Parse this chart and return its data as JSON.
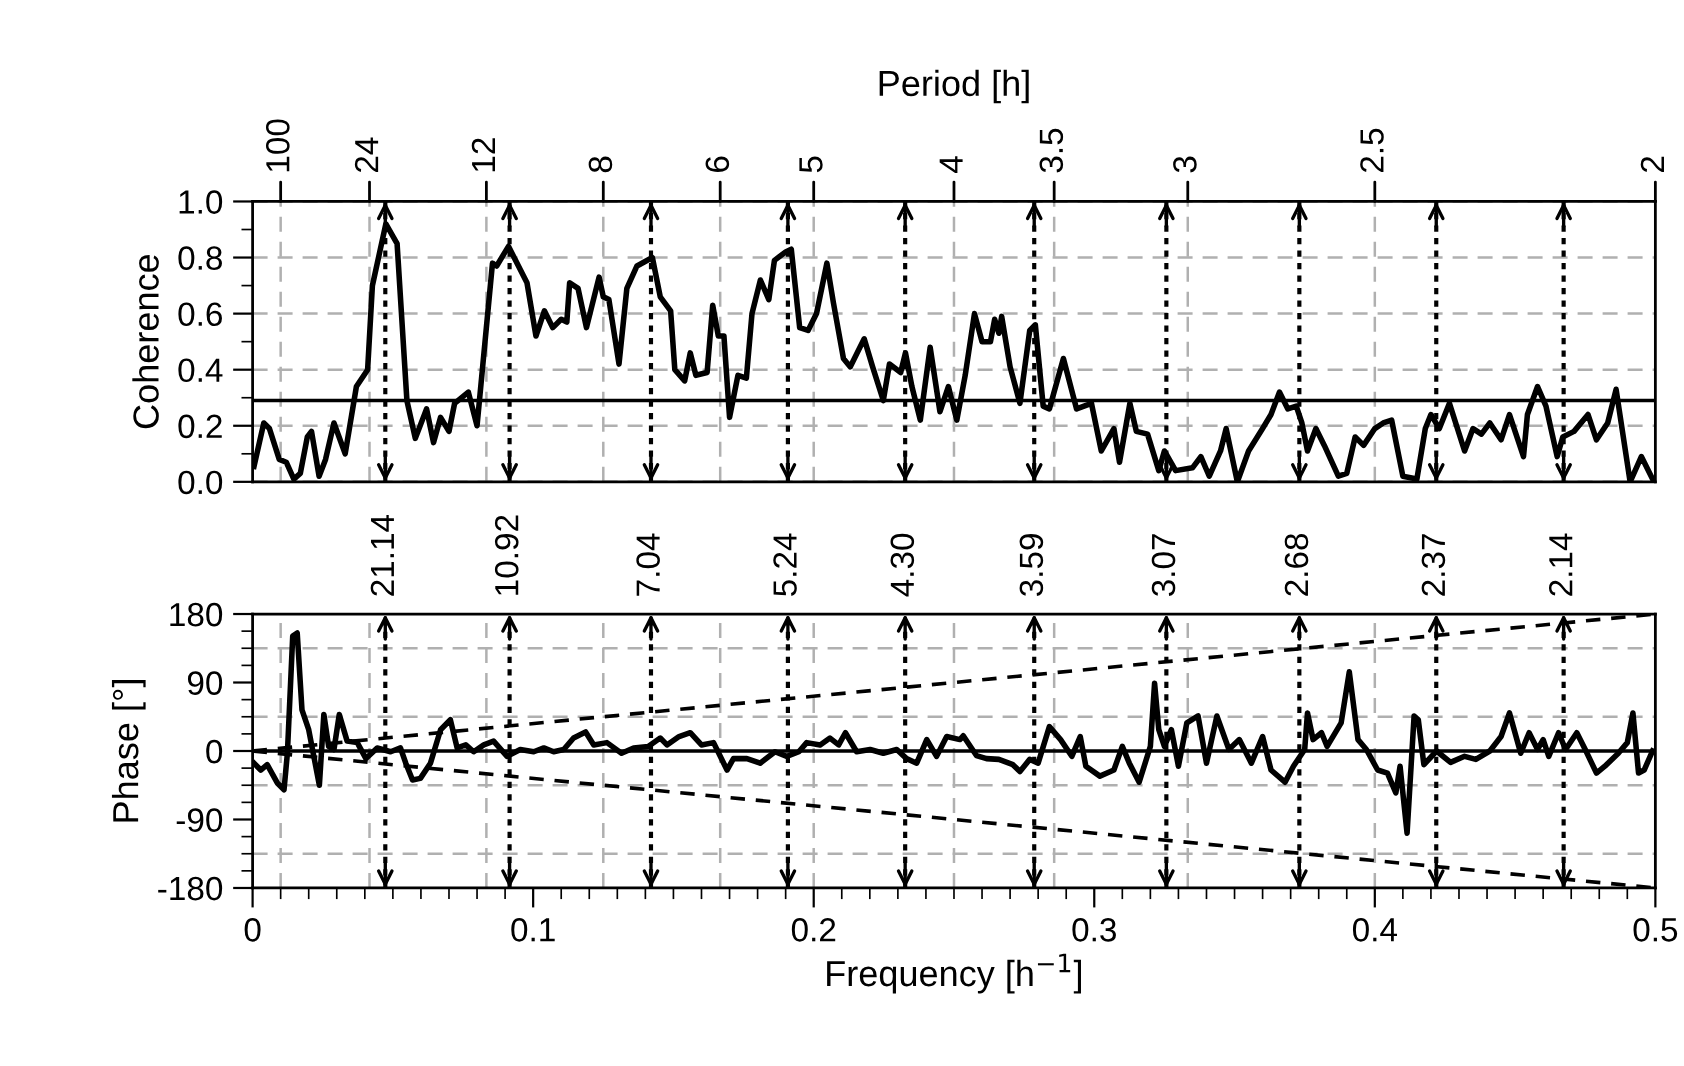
{
  "chart_data": [
    {
      "type": "line",
      "ylabel": "Coherence",
      "x2label": "Period [h]",
      "xlim": [
        0,
        0.5
      ],
      "ylim": [
        0,
        1.0
      ],
      "yticks": [
        {
          "value": 0.0,
          "label": "0.0"
        },
        {
          "value": 0.1,
          "label": null
        },
        0.2,
        {
          "value": 0.3,
          "label": null
        },
        0.4,
        {
          "value": 0.5,
          "label": null
        },
        0.6,
        {
          "value": 0.7,
          "label": null
        },
        0.8,
        {
          "value": 0.9,
          "label": null
        },
        {
          "value": 1.0,
          "label": "1.0"
        }
      ],
      "annotations": [
        {
          "text": "100",
          "x": 0.01,
          "y": 1.0
        },
        {
          "text": "24",
          "x": 0.04167,
          "y": 1.0
        },
        {
          "text": "12",
          "x": 0.08333,
          "y": 1.0
        },
        {
          "text": "8",
          "x": 0.125,
          "y": 1.0
        },
        {
          "text": "6",
          "x": 0.16667,
          "y": 1.0
        },
        {
          "text": "5",
          "x": 0.2,
          "y": 1.0
        },
        {
          "text": "4",
          "x": 0.25,
          "y": 1.0
        },
        {
          "text": "3.5",
          "x": 0.28571,
          "y": 1.0
        },
        {
          "text": "3",
          "x": 0.33333,
          "y": 1.0
        },
        {
          "text": "2.5",
          "x": 0.4,
          "y": 1.0
        },
        {
          "text": "2",
          "x": 0.5,
          "y": 1.0
        }
      ],
      "grid": "y",
      "tick_labels": "y",
      "ref_lines": [
        {
          "axis": "x",
          "value": 0.01,
          "color": "#b0b0b0",
          "line_style": "dashed"
        },
        {
          "axis": "x",
          "value": 0.04167,
          "color": "#b0b0b0",
          "line_style": "dashed"
        },
        {
          "axis": "x",
          "value": 0.08333,
          "color": "#b0b0b0",
          "line_style": "dashed"
        },
        {
          "axis": "x",
          "value": 0.125,
          "color": "#b0b0b0",
          "line_style": "dashed"
        },
        {
          "axis": "x",
          "value": 0.16667,
          "color": "#b0b0b0",
          "line_style": "dashed"
        },
        {
          "axis": "x",
          "value": 0.2,
          "color": "#b0b0b0",
          "line_style": "dashed"
        },
        {
          "axis": "x",
          "value": 0.25,
          "color": "#b0b0b0",
          "line_style": "dashed"
        },
        {
          "axis": "x",
          "value": 0.28571,
          "color": "#b0b0b0",
          "line_style": "dashed"
        },
        {
          "axis": "x",
          "value": 0.33333,
          "color": "#b0b0b0",
          "line_style": "dashed"
        },
        {
          "axis": "x",
          "value": 0.4,
          "color": "#b0b0b0",
          "line_style": "dashed"
        },
        {
          "axis": "x",
          "value": 0.5,
          "color": "#000000",
          "line_style": "solid"
        },
        {
          "axis": "y",
          "value": 0.29,
          "color": "#000000",
          "line_style": "solid"
        },
        {
          "axis": "x",
          "value": 0.0473,
          "line_style": "dotted"
        },
        {
          "axis": "x",
          "value": 0.0916,
          "line_style": "dotted"
        },
        {
          "axis": "x",
          "value": 0.142,
          "line_style": "dotted"
        },
        {
          "axis": "x",
          "value": 0.1908,
          "line_style": "dotted"
        },
        {
          "axis": "x",
          "value": 0.2326,
          "line_style": "dotted"
        },
        {
          "axis": "x",
          "value": 0.2786,
          "line_style": "dotted"
        },
        {
          "axis": "x",
          "value": 0.3257,
          "line_style": "dotted"
        },
        {
          "axis": "x",
          "value": 0.3731,
          "line_style": "dotted"
        },
        {
          "axis": "x",
          "value": 0.4219,
          "line_style": "dotted"
        },
        {
          "axis": "x",
          "value": 0.4673,
          "line_style": "dotted"
        }
      ],
      "series": [
        {
          "color": "#000000",
          "line_style": "solid",
          "x": [
            0.0005,
            0.004,
            0.006,
            0.0095,
            0.012,
            0.0147,
            0.017,
            0.0195,
            0.021,
            0.0237,
            0.026,
            0.029,
            0.033,
            0.037,
            0.041,
            0.0427,
            0.0475,
            0.0515,
            0.055,
            0.058,
            0.062,
            0.0645,
            0.067,
            0.07,
            0.072,
            0.0769,
            0.08,
            0.0855,
            0.087,
            0.0912,
            0.0978,
            0.101,
            0.104,
            0.107,
            0.11,
            0.112,
            0.113,
            0.116,
            0.119,
            0.1235,
            0.125,
            0.127,
            0.1306,
            0.1334,
            0.137,
            0.1425,
            0.1453,
            0.149,
            0.1505,
            0.154,
            0.156,
            0.158,
            0.162,
            0.164,
            0.166,
            0.168,
            0.17,
            0.173,
            0.176,
            0.178,
            0.181,
            0.184,
            0.186,
            0.19,
            0.192,
            0.195,
            0.198,
            0.201,
            0.2047,
            0.207,
            0.2106,
            0.213,
            0.216,
            0.218,
            0.221,
            0.2248,
            0.227,
            0.231,
            0.2327,
            0.235,
            0.238,
            0.2415,
            0.245,
            0.248,
            0.251,
            0.254,
            0.2573,
            0.26,
            0.263,
            0.2645,
            0.266,
            0.267,
            0.27,
            0.2735,
            0.277,
            0.279,
            0.2818,
            0.284,
            0.289,
            0.2937,
            0.299,
            0.3025,
            0.307,
            0.309,
            0.3127,
            0.315,
            0.319,
            0.323,
            0.325,
            0.329,
            0.335,
            0.338,
            0.341,
            0.345,
            0.347,
            0.351,
            0.355,
            0.36,
            0.363,
            0.366,
            0.369,
            0.372,
            0.374,
            0.376,
            0.379,
            0.382,
            0.387,
            0.39,
            0.393,
            0.396,
            0.4,
            0.403,
            0.406,
            0.41,
            0.415,
            0.418,
            0.42,
            0.423,
            0.4266,
            0.432,
            0.435,
            0.438,
            0.441,
            0.445,
            0.448,
            0.453,
            0.4544,
            0.458,
            0.461,
            0.465,
            0.467,
            0.471,
            0.476,
            0.479,
            0.483,
            0.486,
            0.491,
            0.495,
            0.499
          ],
          "values": [
            0.055,
            0.21,
            0.19,
            0.08,
            0.07,
            0.01,
            0.03,
            0.16,
            0.18,
            0.02,
            0.08,
            0.21,
            0.1,
            0.34,
            0.4,
            0.7,
            0.92,
            0.85,
            0.29,
            0.155,
            0.26,
            0.14,
            0.23,
            0.18,
            0.28,
            0.32,
            0.2,
            0.78,
            0.77,
            0.84,
            0.71,
            0.52,
            0.61,
            0.55,
            0.58,
            0.57,
            0.71,
            0.69,
            0.55,
            0.73,
            0.66,
            0.65,
            0.42,
            0.69,
            0.77,
            0.8,
            0.66,
            0.61,
            0.4,
            0.36,
            0.46,
            0.38,
            0.39,
            0.63,
            0.52,
            0.52,
            0.23,
            0.38,
            0.37,
            0.6,
            0.72,
            0.65,
            0.79,
            0.82,
            0.83,
            0.55,
            0.54,
            0.6,
            0.78,
            0.64,
            0.44,
            0.41,
            0.47,
            0.51,
            0.41,
            0.29,
            0.42,
            0.39,
            0.46,
            0.34,
            0.22,
            0.48,
            0.25,
            0.34,
            0.22,
            0.38,
            0.6,
            0.5,
            0.5,
            0.58,
            0.53,
            0.59,
            0.41,
            0.28,
            0.54,
            0.56,
            0.27,
            0.26,
            0.44,
            0.26,
            0.28,
            0.11,
            0.19,
            0.07,
            0.28,
            0.18,
            0.17,
            0.04,
            0.11,
            0.04,
            0.05,
            0.09,
            0.02,
            0.11,
            0.19,
            0.0,
            0.11,
            0.19,
            0.24,
            0.32,
            0.26,
            0.27,
            0.21,
            0.11,
            0.19,
            0.13,
            0.02,
            0.03,
            0.16,
            0.13,
            0.19,
            0.21,
            0.22,
            0.02,
            0.01,
            0.19,
            0.24,
            0.19,
            0.28,
            0.11,
            0.19,
            0.17,
            0.21,
            0.15,
            0.24,
            0.09,
            0.24,
            0.34,
            0.27,
            0.09,
            0.16,
            0.18,
            0.24,
            0.15,
            0.21,
            0.33,
            0.0,
            0.09,
            0.01
          ]
        }
      ]
    },
    {
      "type": "line",
      "ylabel": "Phase [°]",
      "xlabel": "Frequency [h$^{−1}$]",
      "xlim": [
        0,
        0.5
      ],
      "ylim": [
        -180,
        180
      ],
      "xticks": [
        0,
        {
          "value": 0.01,
          "label": null
        },
        {
          "value": 0.02,
          "label": null
        },
        {
          "value": 0.03,
          "label": null
        },
        {
          "value": 0.04,
          "label": null
        },
        {
          "value": 0.05,
          "label": null
        },
        {
          "value": 0.06,
          "label": null
        },
        {
          "value": 0.07,
          "label": null
        },
        {
          "value": 0.08,
          "label": null
        },
        {
          "value": 0.09,
          "label": null
        },
        0.1,
        {
          "value": 0.11,
          "label": null
        },
        {
          "value": 0.12,
          "label": null
        },
        {
          "value": 0.13,
          "label": null
        },
        {
          "value": 0.14,
          "label": null
        },
        {
          "value": 0.15,
          "label": null
        },
        {
          "value": 0.16,
          "label": null
        },
        {
          "value": 0.17,
          "label": null
        },
        {
          "value": 0.18,
          "label": null
        },
        {
          "value": 0.19,
          "label": null
        },
        0.2,
        {
          "value": 0.21,
          "label": null
        },
        {
          "value": 0.22,
          "label": null
        },
        {
          "value": 0.23,
          "label": null
        },
        {
          "value": 0.24,
          "label": null
        },
        {
          "value": 0.25,
          "label": null
        },
        {
          "value": 0.26,
          "label": null
        },
        {
          "value": 0.27,
          "label": null
        },
        {
          "value": 0.28,
          "label": null
        },
        {
          "value": 0.29,
          "label": null
        },
        0.3,
        {
          "value": 0.31,
          "label": null
        },
        {
          "value": 0.32,
          "label": null
        },
        {
          "value": 0.33,
          "label": null
        },
        {
          "value": 0.34,
          "label": null
        },
        {
          "value": 0.35,
          "label": null
        },
        {
          "value": 0.36,
          "label": null
        },
        {
          "value": 0.37,
          "label": null
        },
        {
          "value": 0.38,
          "label": null
        },
        {
          "value": 0.39,
          "label": null
        },
        0.4,
        {
          "value": 0.41,
          "label": null
        },
        {
          "value": 0.42,
          "label": null
        },
        {
          "value": 0.43,
          "label": null
        },
        {
          "value": 0.44,
          "label": null
        },
        {
          "value": 0.45,
          "label": null
        },
        {
          "value": 0.46,
          "label": null
        },
        {
          "value": 0.47,
          "label": null
        },
        {
          "value": 0.48,
          "label": null
        },
        {
          "value": 0.49,
          "label": null
        },
        0.5
      ],
      "yticks": [
        -180,
        {
          "value": -157.5,
          "label": null
        },
        {
          "value": -135,
          "label": null
        },
        {
          "value": -112.5,
          "label": null
        },
        -90,
        {
          "value": -67.5,
          "label": null
        },
        {
          "value": -45,
          "label": null
        },
        {
          "value": -22.5,
          "label": null
        },
        0,
        {
          "value": 22.5,
          "label": null
        },
        {
          "value": 45,
          "label": null
        },
        {
          "value": 67.5,
          "label": null
        },
        90,
        {
          "value": 112.5,
          "label": null
        },
        {
          "value": 135,
          "label": null
        },
        {
          "value": 157.5,
          "label": null
        },
        180
      ],
      "ref_lines": [
        {
          "axis": "x",
          "value": 0.01,
          "color": "#b0b0b0",
          "line_style": "dashed"
        },
        {
          "axis": "x",
          "value": 0.04167,
          "color": "#b0b0b0",
          "line_style": "dashed"
        },
        {
          "axis": "x",
          "value": 0.08333,
          "color": "#b0b0b0",
          "line_style": "dashed"
        },
        {
          "axis": "x",
          "value": 0.125,
          "color": "#b0b0b0",
          "line_style": "dashed"
        },
        {
          "axis": "x",
          "value": 0.16667,
          "color": "#b0b0b0",
          "line_style": "dashed"
        },
        {
          "axis": "x",
          "value": 0.2,
          "color": "#b0b0b0",
          "line_style": "dashed"
        },
        {
          "axis": "x",
          "value": 0.25,
          "color": "#b0b0b0",
          "line_style": "dashed"
        },
        {
          "axis": "x",
          "value": 0.28571,
          "color": "#b0b0b0",
          "line_style": "dashed"
        },
        {
          "axis": "x",
          "value": 0.33333,
          "color": "#b0b0b0",
          "line_style": "dashed"
        },
        {
          "axis": "x",
          "value": 0.4,
          "color": "#b0b0b0",
          "line_style": "dashed"
        },
        {
          "axis": "y",
          "value": 135,
          "color": "#b0b0b0",
          "line_style": "dashed"
        },
        {
          "axis": "y",
          "value": 45,
          "color": "#b0b0b0",
          "line_style": "dashed"
        },
        {
          "axis": "y",
          "value": -45,
          "color": "#b0b0b0",
          "line_style": "dashed"
        },
        {
          "axis": "y",
          "value": -135,
          "color": "#b0b0b0",
          "line_style": "dashed"
        },
        {
          "axis": "y",
          "value": 0,
          "color": "#000000",
          "line_style": "solid"
        },
        {
          "axis": "x",
          "value": 0.0473,
          "line_style": "dotted"
        },
        {
          "axis": "x",
          "value": 0.0916,
          "line_style": "dotted"
        },
        {
          "axis": "x",
          "value": 0.142,
          "line_style": "dotted"
        },
        {
          "axis": "x",
          "value": 0.1908,
          "line_style": "dotted"
        },
        {
          "axis": "x",
          "value": 0.2326,
          "line_style": "dotted"
        },
        {
          "axis": "x",
          "value": 0.2786,
          "line_style": "dotted"
        },
        {
          "axis": "x",
          "value": 0.3257,
          "line_style": "dotted"
        },
        {
          "axis": "x",
          "value": 0.3731,
          "line_style": "dotted"
        },
        {
          "axis": "x",
          "value": 0.4219,
          "line_style": "dotted"
        },
        {
          "axis": "x",
          "value": 0.4673,
          "line_style": "dotted"
        }
      ],
      "annotations": [
        {
          "text": "21.14",
          "x": 0.0473,
          "y": 180
        },
        {
          "text": "10.92",
          "x": 0.0916,
          "y": 180
        },
        {
          "text": "7.04",
          "x": 0.142,
          "y": 180
        },
        {
          "text": "5.24",
          "x": 0.1908,
          "y": 180
        },
        {
          "text": "4.30",
          "x": 0.2326,
          "y": 180
        },
        {
          "text": "3.59",
          "x": 0.2786,
          "y": 180
        },
        {
          "text": "3.07",
          "x": 0.3257,
          "y": 180
        },
        {
          "text": "2.68",
          "x": 0.3731,
          "y": 180
        },
        {
          "text": "2.37",
          "x": 0.4219,
          "y": 180
        },
        {
          "text": "2.14",
          "x": 0.4673,
          "y": 180
        }
      ],
      "series": [
        {
          "color": "#000000",
          "line_style": "solid",
          "x": [
            0.0005,
            0.0029,
            0.0052,
            0.0088,
            0.0112,
            0.0124,
            0.0143,
            0.0159,
            0.0176,
            0.02,
            0.0238,
            0.0254,
            0.0271,
            0.029,
            0.0309,
            0.0337,
            0.0373,
            0.0404,
            0.0444,
            0.0492,
            0.0527,
            0.0546,
            0.057,
            0.0598,
            0.0634,
            0.067,
            0.0705,
            0.0729,
            0.076,
            0.0788,
            0.0824,
            0.0859,
            0.0907,
            0.0954,
            0.1002,
            0.1038,
            0.1073,
            0.1109,
            0.1144,
            0.1187,
            0.1216,
            0.1263,
            0.1315,
            0.1358,
            0.141,
            0.1453,
            0.1477,
            0.152,
            0.156,
            0.16,
            0.1643,
            0.1691,
            0.1714,
            0.1762,
            0.1809,
            0.1862,
            0.1904,
            0.1947,
            0.1975,
            0.2023,
            0.2058,
            0.2089,
            0.2113,
            0.2153,
            0.2201,
            0.2248,
            0.2296,
            0.2331,
            0.2367,
            0.2403,
            0.2438,
            0.2474,
            0.2521,
            0.2533,
            0.258,
            0.2616,
            0.266,
            0.271,
            0.2735,
            0.277,
            0.28,
            0.284,
            0.288,
            0.292,
            0.295,
            0.297,
            0.302,
            0.307,
            0.31,
            0.3125,
            0.316,
            0.32,
            0.3215,
            0.323,
            0.325,
            0.3275,
            0.33,
            0.333,
            0.337,
            0.34,
            0.3437,
            0.348,
            0.3517,
            0.356,
            0.36,
            0.363,
            0.368,
            0.371,
            0.375,
            0.376,
            0.378,
            0.381,
            0.383,
            0.388,
            0.3909,
            0.394,
            0.397,
            0.401,
            0.4045,
            0.4075,
            0.409,
            0.4115,
            0.414,
            0.4155,
            0.4175,
            0.422,
            0.427,
            0.432,
            0.436,
            0.441,
            0.445,
            0.448,
            0.452,
            0.455,
            0.458,
            0.46,
            0.462,
            0.4655,
            0.468,
            0.472,
            0.475,
            0.479,
            0.482,
            0.4868,
            0.49,
            0.492,
            0.494,
            0.496,
            0.499
          ],
          "values": [
            -16,
            -25,
            -18,
            -42,
            -51,
            -3,
            151,
            155,
            54,
            28,
            -45,
            48,
            6,
            2,
            48,
            13,
            11,
            -10,
            4,
            -1,
            4,
            -16,
            -38,
            -36,
            -16,
            28,
            41,
            4,
            8,
            -1,
            8,
            13,
            -7,
            2,
            -1,
            4,
            -1,
            2,
            17,
            25,
            8,
            11,
            -3,
            4,
            6,
            17,
            8,
            19,
            24,
            8,
            11,
            -25,
            -10,
            -10,
            -16,
            -1,
            -7,
            -1,
            11,
            8,
            17,
            8,
            24,
            -1,
            2,
            -3,
            2,
            -10,
            -16,
            15,
            -7,
            19,
            15,
            20,
            -6,
            -10,
            -11,
            -18,
            -27,
            -11,
            -16,
            32,
            15,
            -7,
            19,
            -20,
            -33,
            -25,
            6,
            -16,
            -41,
            6,
            89,
            28,
            6,
            28,
            -20,
            37,
            46,
            -16,
            46,
            2,
            15,
            -16,
            19,
            -25,
            -41,
            -20,
            2,
            50,
            15,
            24,
            6,
            37,
            104,
            15,
            2,
            -25,
            -29,
            -55,
            -20,
            -108,
            46,
            41,
            -18,
            0,
            -15,
            -7,
            -11,
            0,
            19,
            50,
            -3,
            24,
            2,
            15,
            -7,
            24,
            2,
            24,
            2,
            -29,
            -20,
            -3,
            11,
            50,
            -29,
            -25,
            0
          ]
        },
        {
          "color": "#000000",
          "line_style": "dashed",
          "x": [
            0,
            0.5
          ],
          "values": [
            0,
            180
          ]
        },
        {
          "color": "#000000",
          "line_style": "dashed",
          "x": [
            0,
            0.5
          ],
          "values": [
            0,
            -180
          ]
        }
      ]
    }
  ]
}
